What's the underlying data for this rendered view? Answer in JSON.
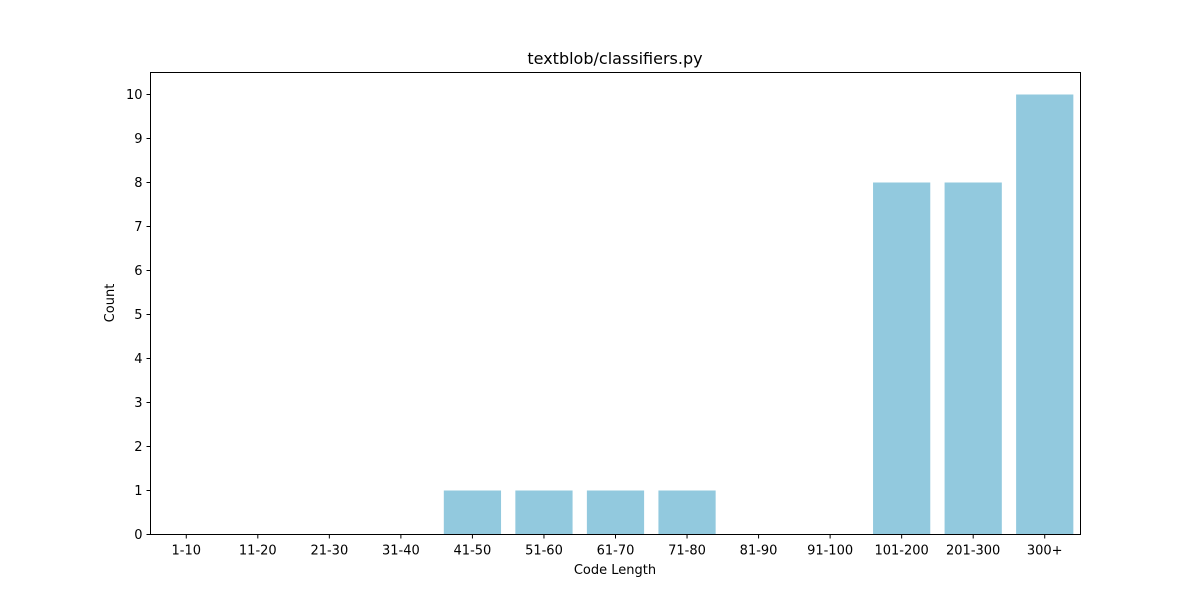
{
  "chart_data": {
    "type": "bar",
    "title": "textblob/classifiers.py",
    "xlabel": "Code Length",
    "ylabel": "Count",
    "categories": [
      "1-10",
      "11-20",
      "21-30",
      "31-40",
      "41-50",
      "51-60",
      "61-70",
      "71-80",
      "81-90",
      "91-100",
      "101-200",
      "201-300",
      "300+"
    ],
    "values": [
      0,
      0,
      0,
      0,
      1,
      1,
      1,
      1,
      0,
      0,
      8,
      8,
      10
    ],
    "ylim": [
      0,
      10.5
    ],
    "yticks": [
      0,
      1,
      2,
      3,
      4,
      5,
      6,
      7,
      8,
      9,
      10
    ],
    "grid": false,
    "bar_color": "#92c9de"
  }
}
